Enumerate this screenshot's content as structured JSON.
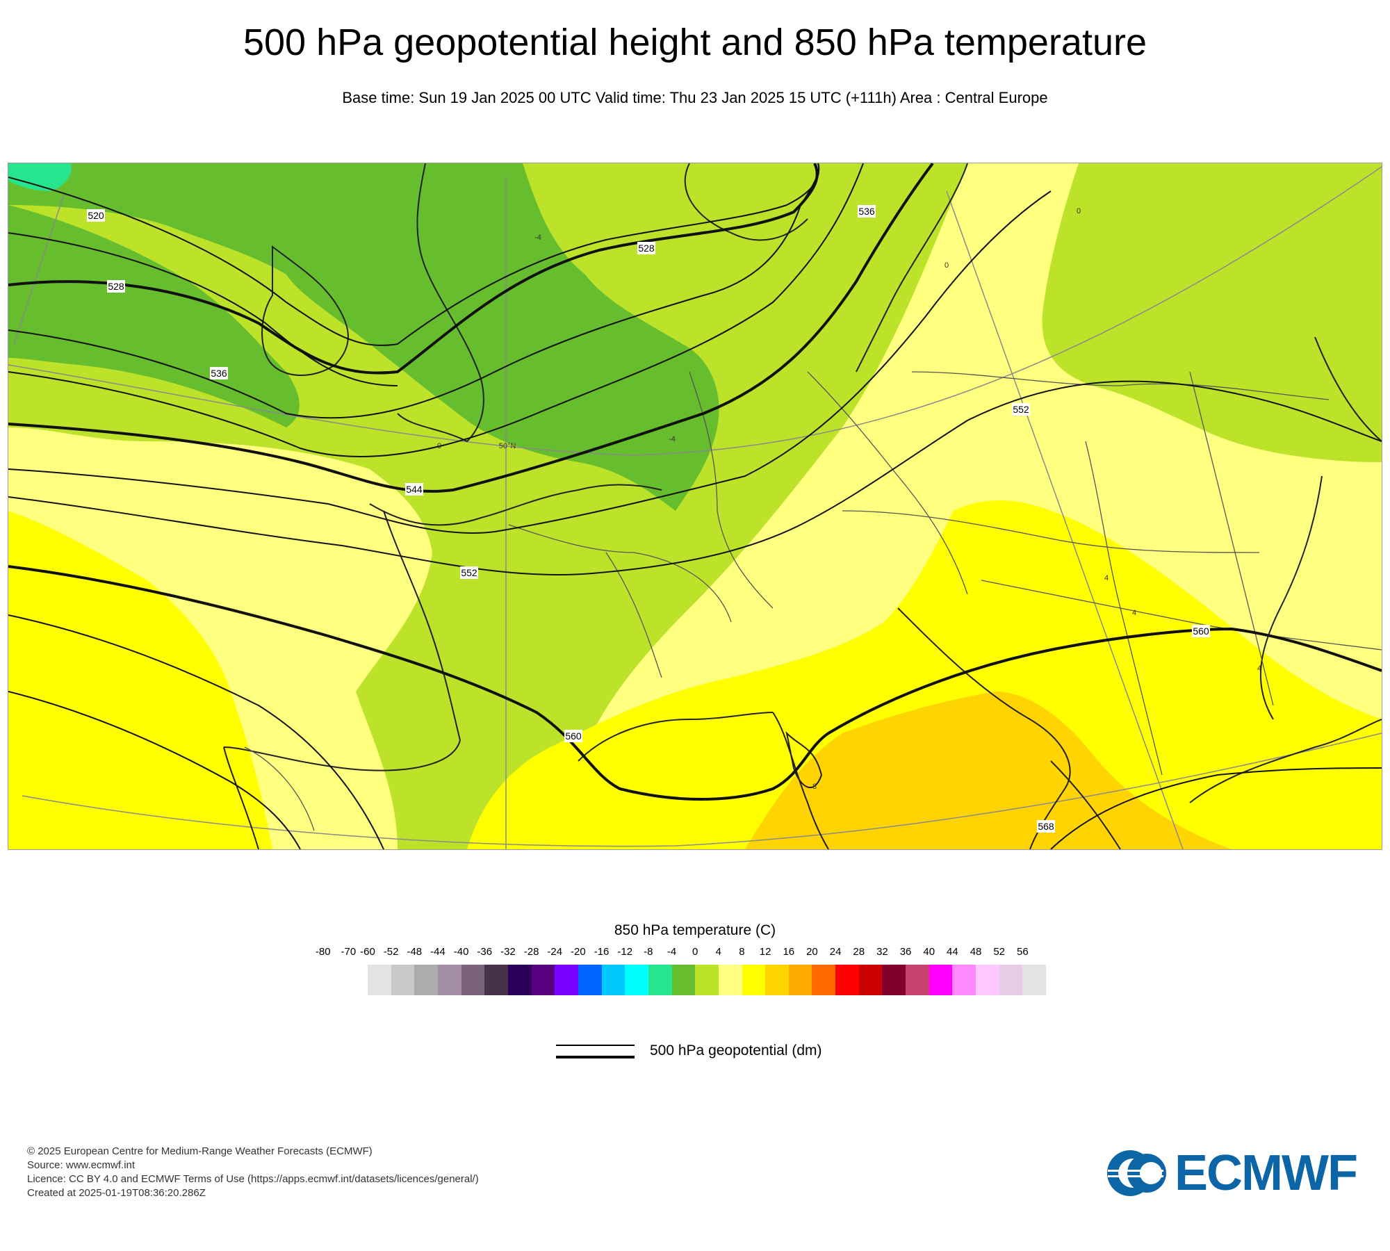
{
  "title": "500 hPa geopotential height and 850 hPa temperature",
  "subtitle": "Base time: Sun 19 Jan 2025 00 UTC Valid time: Thu 23 Jan 2025 15 UTC (+111h) Area : Central Europe",
  "map": {
    "contour_labels": [
      "520",
      "528",
      "528",
      "536",
      "536",
      "544",
      "552",
      "552",
      "560",
      "560",
      "568"
    ],
    "isotherm_labels": [
      "0",
      "0",
      "0",
      "-4",
      "-4",
      "4",
      "4",
      "4",
      "8"
    ],
    "graticule_label": "50°N"
  },
  "legend": {
    "title": "850 hPa temperature (C)",
    "ticks": [
      "-80",
      "-70",
      "-60",
      "-52",
      "-48",
      "-44",
      "-40",
      "-36",
      "-32",
      "-28",
      "-24",
      "-20",
      "-16",
      "-12",
      "-8",
      "-4",
      "0",
      "4",
      "8",
      "12",
      "16",
      "20",
      "24",
      "28",
      "32",
      "36",
      "40",
      "44",
      "48",
      "52",
      "56"
    ],
    "colors": [
      "#e3e3e3",
      "#c9c9c9",
      "#acacac",
      "#a48ea6",
      "#7c637c",
      "#463249",
      "#2a0058",
      "#570080",
      "#7a00ff",
      "#0066ff",
      "#00c8ff",
      "#00ffff",
      "#26e58e",
      "#66bd2e",
      "#bce32a",
      "#ffff80",
      "#ffff00",
      "#ffd400",
      "#ffaa00",
      "#ff6a00",
      "#ff0000",
      "#cc0000",
      "#82002c",
      "#c8406c",
      "#ff00ff",
      "#ff88ff",
      "#ffc7ff",
      "#e6cce6",
      "#e3e3e3"
    ]
  },
  "contour_legend": {
    "label": "500 hPa geopotential (dm)"
  },
  "footer": {
    "line1": "© 2025 European Centre for Medium-Range Weather Forecasts (ECMWF)",
    "line2": "Source: www.ecmwf.int",
    "line3": "Licence: CC BY 4.0 and ECMWF Terms of Use (https://apps.ecmwf.int/datasets/licences/general/)",
    "line4": "Created at 2025-01-19T08:36:20.286Z"
  },
  "logo": {
    "text": "ECMWF",
    "color": "#0c65a6"
  }
}
